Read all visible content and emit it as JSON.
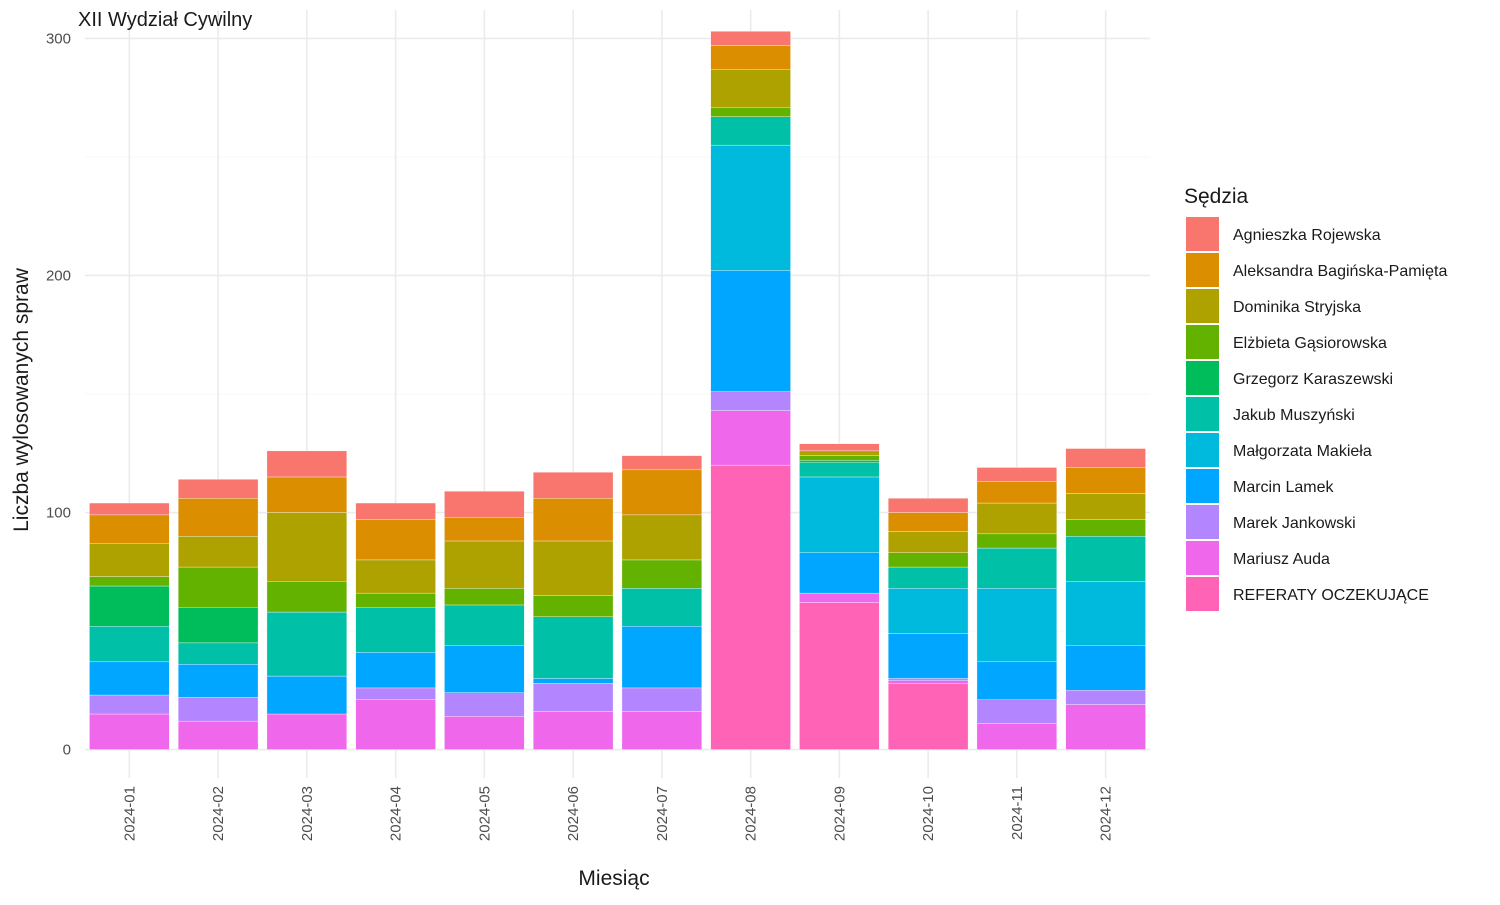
{
  "chart_data": {
    "type": "bar",
    "stacked": true,
    "title": "XII Wydział Cywilny",
    "xlabel": "Miesiąc",
    "ylabel": "Liczba wylosowanych spraw",
    "ylim": [
      -12,
      312
    ],
    "yticks": [
      0,
      100,
      200,
      300
    ],
    "grid": true,
    "legend_title": "Sędzia",
    "legend_position": "right",
    "categories": [
      "2024-01",
      "2024-02",
      "2024-03",
      "2024-04",
      "2024-05",
      "2024-06",
      "2024-07",
      "2024-08",
      "2024-09",
      "2024-10",
      "2024-11",
      "2024-12"
    ],
    "series": [
      {
        "name": "Agnieszka Rojewska",
        "color": "#F8766D",
        "values": [
          5,
          8,
          11,
          7,
          11,
          11,
          6,
          6,
          3,
          6,
          6,
          8
        ]
      },
      {
        "name": "Aleksandra Bagińska-Pamięta",
        "color": "#DB8E00",
        "values": [
          12,
          16,
          15,
          17,
          10,
          18,
          19,
          10,
          0,
          8,
          9,
          11
        ]
      },
      {
        "name": "Dominika Stryjska",
        "color": "#AEA200",
        "values": [
          14,
          13,
          29,
          14,
          20,
          23,
          19,
          16,
          2,
          9,
          13,
          11
        ]
      },
      {
        "name": "Elżbieta Gąsiorowska",
        "color": "#64B200",
        "values": [
          4,
          17,
          13,
          6,
          7,
          9,
          12,
          4,
          2,
          6,
          6,
          7
        ]
      },
      {
        "name": "Grzegorz Karaszewski",
        "color": "#00BD5C",
        "values": [
          17,
          15,
          0,
          0,
          0,
          0,
          0,
          0,
          1,
          0,
          0,
          0
        ]
      },
      {
        "name": "Jakub Muszyński",
        "color": "#00C1A7",
        "values": [
          15,
          9,
          27,
          19,
          17,
          26,
          16,
          12,
          6,
          9,
          17,
          19
        ]
      },
      {
        "name": "Małgorzata Makieła",
        "color": "#00BADE",
        "values": [
          0,
          0,
          0,
          0,
          0,
          0,
          0,
          53,
          32,
          19,
          31,
          27
        ]
      },
      {
        "name": "Marcin Lamek",
        "color": "#00A6FF",
        "values": [
          14,
          14,
          16,
          15,
          20,
          2,
          26,
          51,
          17,
          19,
          16,
          19
        ]
      },
      {
        "name": "Marek Jankowski",
        "color": "#B385FF",
        "values": [
          8,
          10,
          0,
          5,
          10,
          12,
          10,
          8,
          0,
          1,
          10,
          6
        ]
      },
      {
        "name": "Mariusz Auda",
        "color": "#EF67EB",
        "values": [
          15,
          12,
          15,
          21,
          14,
          16,
          16,
          23,
          4,
          1,
          11,
          19
        ]
      },
      {
        "name": "REFERATY OCZEKUJĄCE",
        "color": "#FF63B6",
        "values": [
          0,
          0,
          0,
          0,
          0,
          0,
          0,
          120,
          62,
          28,
          0,
          0
        ]
      }
    ]
  }
}
